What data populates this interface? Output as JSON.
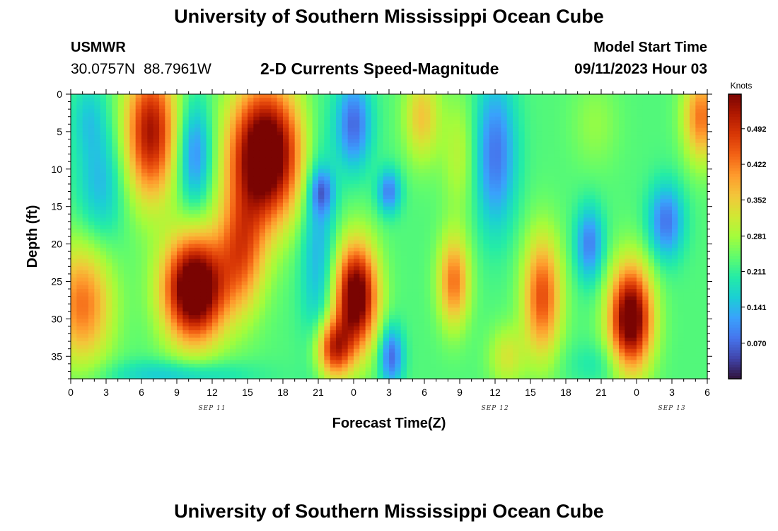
{
  "header": {
    "title": "University of Southern Mississippi Ocean Cube",
    "station": "USMWR",
    "lat": "30.0757N",
    "lon": "88.7961W",
    "start_label": "Model Start Time",
    "start_value": "09/11/2023 Hour 03"
  },
  "footer": {
    "title": "University of Southern Mississippi Ocean Cube"
  },
  "chart_data": {
    "type": "heatmap",
    "title": "2-D Currents Speed-Magnitude",
    "xlabel": "Forecast Time(Z)",
    "ylabel": "Depth (ft)",
    "x_range_hours": [
      0,
      54
    ],
    "x_tick_labels": [
      "0",
      "3",
      "6",
      "9",
      "12",
      "15",
      "18",
      "21",
      "0",
      "3",
      "6",
      "9",
      "12",
      "15",
      "18",
      "21",
      "0",
      "3",
      "6"
    ],
    "date_labels": [
      {
        "text": "SEP 11",
        "hour": 12
      },
      {
        "text": "SEP 12",
        "hour": 36
      },
      {
        "text": "SEP 13",
        "hour": 51
      }
    ],
    "y_range": [
      0,
      38
    ],
    "y_ticks": [
      0,
      5,
      10,
      15,
      20,
      25,
      30,
      35
    ],
    "y_inverted": true,
    "colorbar": {
      "unit": "Knots",
      "range": [
        0.0,
        0.56
      ],
      "ticks": [
        0.07,
        0.141,
        0.211,
        0.281,
        0.352,
        0.422,
        0.492
      ],
      "tick_labels": [
        "0.070",
        "0.141",
        "0.211",
        "0.281",
        "0.352",
        "0.422",
        "0.492"
      ],
      "colormap": [
        "#30123b",
        "#4145ab",
        "#4675ed",
        "#39a2fc",
        "#1bcfd4",
        "#24eca6",
        "#61fc6c",
        "#a4fc3b",
        "#d1e834",
        "#f3c63a",
        "#fe9b2d",
        "#f36315",
        "#d93806",
        "#b11901",
        "#7a0402"
      ]
    },
    "features": [
      {
        "hour": 1.0,
        "depth": 28,
        "sh": 2.5,
        "sd": 8,
        "v": 0.2
      },
      {
        "hour": 6.8,
        "depth": 5,
        "sh": 2.2,
        "sd": 9,
        "v": 0.3
      },
      {
        "hour": 10.5,
        "depth": 8,
        "sh": 1.5,
        "sd": 7,
        "v": -0.14
      },
      {
        "hour": 10.5,
        "depth": 26,
        "sh": 2.6,
        "sd": 7,
        "v": 0.42
      },
      {
        "hour": 16.5,
        "depth": 8,
        "sh": 3.0,
        "sd": 9,
        "v": 0.42
      },
      {
        "hour": 14.5,
        "depth": 21,
        "sh": 2.0,
        "sd": 8,
        "v": 0.2
      },
      {
        "hour": 2.5,
        "depth": 12,
        "sh": 2.0,
        "sd": 8,
        "v": -0.09
      },
      {
        "hour": 1.5,
        "depth": 3,
        "sh": 1.5,
        "sd": 5,
        "v": -0.06
      },
      {
        "hour": 21.0,
        "depth": 20,
        "sh": 1.5,
        "sd": 15,
        "v": -0.1
      },
      {
        "hour": 24.0,
        "depth": 4,
        "sh": 1.5,
        "sd": 6,
        "v": -0.16
      },
      {
        "hour": 24.2,
        "depth": 27,
        "sh": 1.8,
        "sd": 7,
        "v": 0.38
      },
      {
        "hour": 22.3,
        "depth": 34,
        "sh": 1.5,
        "sd": 4,
        "v": 0.26
      },
      {
        "hour": 21.3,
        "depth": 13,
        "sh": 1.0,
        "sd": 3,
        "v": -0.12
      },
      {
        "hour": 27.0,
        "depth": 13,
        "sh": 1.0,
        "sd": 3,
        "v": -0.14
      },
      {
        "hour": 27.2,
        "depth": 35,
        "sh": 1.0,
        "sd": 4,
        "v": -0.16
      },
      {
        "hour": 29.8,
        "depth": 3,
        "sh": 1.5,
        "sd": 6,
        "v": 0.13
      },
      {
        "hour": 32.5,
        "depth": 25,
        "sh": 1.3,
        "sd": 6,
        "v": 0.2
      },
      {
        "hour": 36.0,
        "depth": 8,
        "sh": 1.8,
        "sd": 10,
        "v": -0.15
      },
      {
        "hour": 33.0,
        "depth": 8,
        "sh": 1.5,
        "sd": 8,
        "v": 0.07
      },
      {
        "hour": 40.0,
        "depth": 27,
        "sh": 1.6,
        "sd": 8,
        "v": 0.23
      },
      {
        "hour": 37.0,
        "depth": 35,
        "sh": 1.5,
        "sd": 4,
        "v": 0.09
      },
      {
        "hour": 44.0,
        "depth": 20,
        "sh": 1.2,
        "sd": 5,
        "v": -0.14
      },
      {
        "hour": 47.5,
        "depth": 30,
        "sh": 1.8,
        "sd": 7,
        "v": 0.38
      },
      {
        "hour": 50.5,
        "depth": 17,
        "sh": 1.5,
        "sd": 5,
        "v": -0.15
      },
      {
        "hour": 53.5,
        "depth": 3,
        "sh": 1.5,
        "sd": 6,
        "v": 0.2
      },
      {
        "hour": 44.5,
        "depth": 4,
        "sh": 2.0,
        "sd": 6,
        "v": 0.04
      },
      {
        "hour": 45.0,
        "depth": 36,
        "sh": 3.0,
        "sd": 3,
        "v": -0.04
      },
      {
        "hour": 9.0,
        "depth": 37.5,
        "sh": 6.0,
        "sd": 2,
        "v": -0.08
      }
    ],
    "background_value": 0.23
  }
}
